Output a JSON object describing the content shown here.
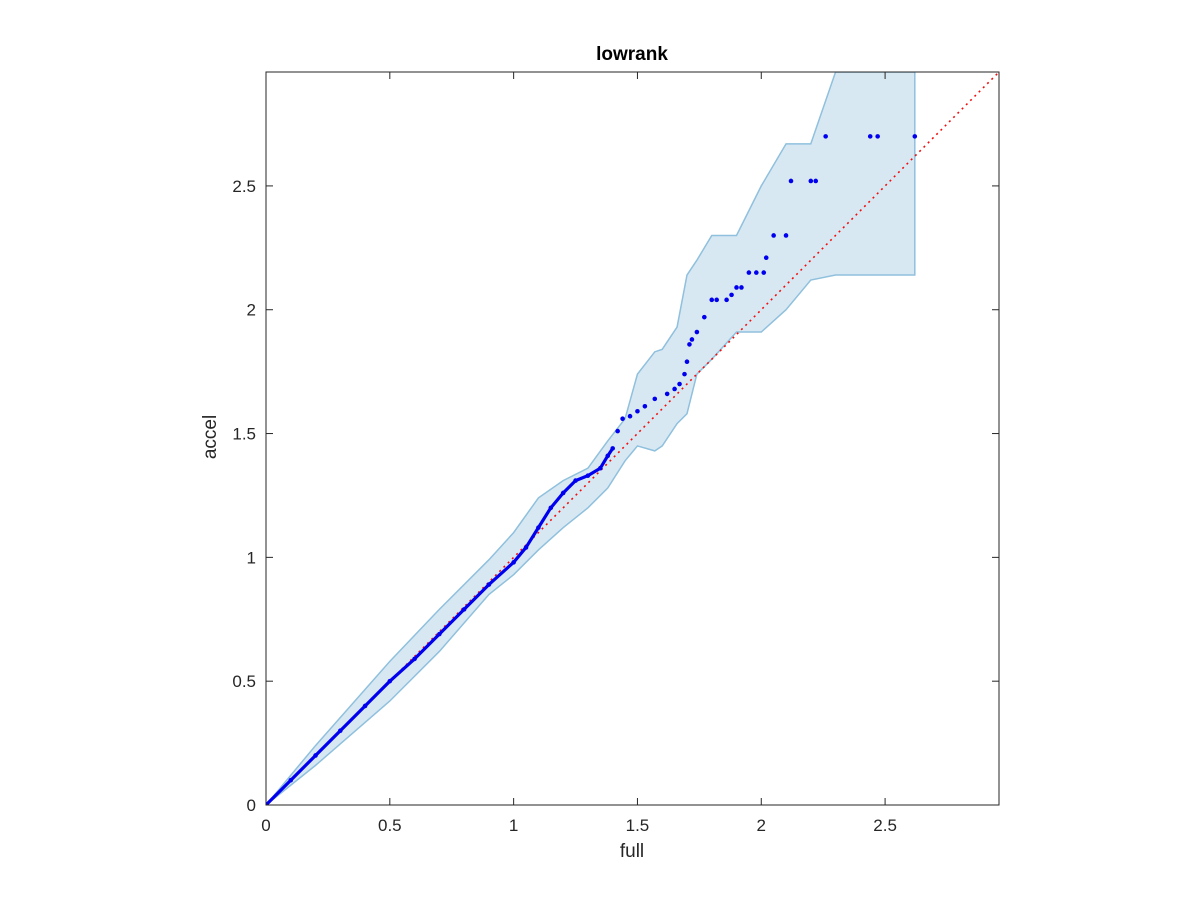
{
  "chart_data": {
    "type": "scatter",
    "title": "lowrank",
    "xlabel": "full",
    "ylabel": "accel",
    "xlim": [
      0,
      2.96
    ],
    "ylim": [
      0,
      2.96
    ],
    "xticks": [
      0,
      0.5,
      1,
      1.5,
      2,
      2.5
    ],
    "yticks": [
      0,
      0.5,
      1,
      1.5,
      2,
      2.5
    ],
    "xtick_labels": [
      "0",
      "0.5",
      "1",
      "1.5",
      "2",
      "2.5"
    ],
    "ytick_labels": [
      "0",
      "0.5",
      "1",
      "1.5",
      "2",
      "2.5"
    ],
    "grid": false,
    "box": true,
    "colors": {
      "points": "#0000ee",
      "reference_line": "#ee1111",
      "band_fill": "#d8e8f3",
      "band_edge": "#8fc0dd",
      "axes": "#262626"
    },
    "reference_line": {
      "x": [
        0,
        2.96
      ],
      "y": [
        0,
        2.96
      ]
    },
    "confidence_band": {
      "x": [
        0,
        0.2,
        0.5,
        0.7,
        0.9,
        1.0,
        1.1,
        1.2,
        1.3,
        1.38,
        1.45,
        1.5,
        1.57,
        1.6,
        1.66,
        1.7,
        1.74,
        1.8,
        1.9,
        2.0,
        2.1,
        2.2,
        2.3,
        2.62
      ],
      "upper": [
        0,
        0.24,
        0.58,
        0.79,
        0.99,
        1.1,
        1.24,
        1.31,
        1.36,
        1.47,
        1.56,
        1.74,
        1.83,
        1.84,
        1.93,
        2.14,
        2.2,
        2.3,
        2.3,
        2.5,
        2.67,
        2.67,
        2.96,
        2.96
      ],
      "lower": [
        0,
        0.16,
        0.42,
        0.62,
        0.85,
        0.93,
        1.03,
        1.12,
        1.2,
        1.28,
        1.39,
        1.45,
        1.43,
        1.45,
        1.54,
        1.58,
        1.74,
        1.8,
        1.91,
        1.91,
        2.0,
        2.12,
        2.14,
        2.14
      ]
    },
    "series": [
      {
        "x": [
          0.1,
          0.2,
          0.3,
          0.4,
          0.5,
          0.6,
          0.7,
          0.8,
          0.9,
          1.0,
          1.05,
          1.1,
          1.15,
          1.2,
          1.25,
          1.3,
          1.35,
          1.38,
          1.4,
          1.42,
          1.44,
          1.47,
          1.5,
          1.53,
          1.57,
          1.62,
          1.65,
          1.67,
          1.69,
          1.7,
          1.71,
          1.72,
          1.74,
          1.77,
          1.8,
          1.82,
          1.86,
          1.88,
          1.9,
          1.92,
          1.95,
          1.98,
          2.01,
          2.02,
          2.05,
          2.1,
          2.12,
          2.2,
          2.22,
          2.26,
          2.44,
          2.47,
          2.62
        ],
        "y": [
          0.1,
          0.2,
          0.3,
          0.4,
          0.5,
          0.59,
          0.69,
          0.79,
          0.89,
          0.98,
          1.04,
          1.12,
          1.2,
          1.26,
          1.31,
          1.33,
          1.36,
          1.41,
          1.44,
          1.51,
          1.56,
          1.57,
          1.59,
          1.61,
          1.64,
          1.66,
          1.68,
          1.7,
          1.74,
          1.79,
          1.86,
          1.88,
          1.91,
          1.97,
          2.04,
          2.04,
          2.04,
          2.06,
          2.09,
          2.09,
          2.15,
          2.15,
          2.15,
          2.21,
          2.3,
          2.3,
          2.52,
          2.52,
          2.52,
          2.7,
          2.7,
          2.7,
          2.7
        ]
      }
    ]
  }
}
